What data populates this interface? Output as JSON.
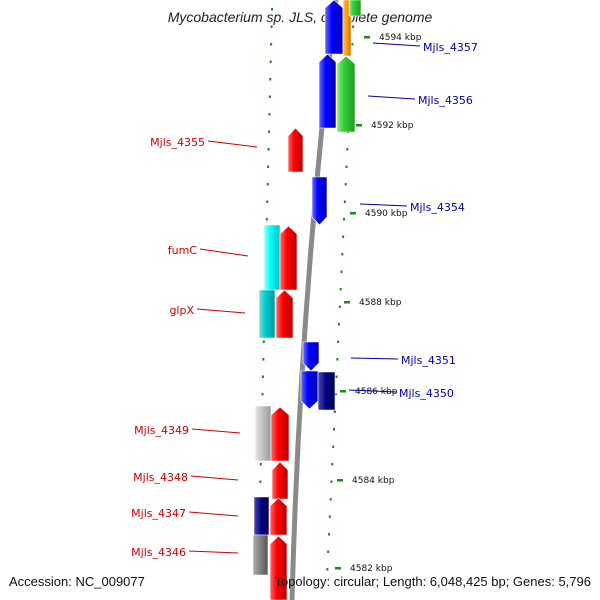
{
  "title": "Mycobacterium sp. JLS, complete genome",
  "footer": {
    "accession": "Accession: NC_009077",
    "summary": "Topology: circular; Length: 6,048,425 bp; Genes: 5,796"
  },
  "colors": {
    "backbone": "#8a8a8a",
    "dots": "#1a8a1a",
    "left_label": "#cc0000",
    "right_label": "#0000aa"
  },
  "scale_labels": [
    {
      "text": "4594 kbp"
    },
    {
      "text": "4592 kbp"
    },
    {
      "text": "4590 kbp"
    },
    {
      "text": "4588 kbp"
    },
    {
      "text": "4586 kbp"
    },
    {
      "text": "4584 kbp"
    },
    {
      "text": "4582 kbp"
    }
  ],
  "left_genes": [
    {
      "label": "Mjls_4355"
    },
    {
      "label": "fumC"
    },
    {
      "label": "glpX"
    },
    {
      "label": "Mjls_4349"
    },
    {
      "label": "Mjls_4348"
    },
    {
      "label": "Mjls_4347"
    },
    {
      "label": "Mjls_4346"
    }
  ],
  "right_genes": [
    {
      "label": "Mjls_4357"
    },
    {
      "label": "Mjls_4356"
    },
    {
      "label": "Mjls_4354"
    },
    {
      "label": "Mjls_4351"
    },
    {
      "label": "Mjls_4350"
    }
  ]
}
